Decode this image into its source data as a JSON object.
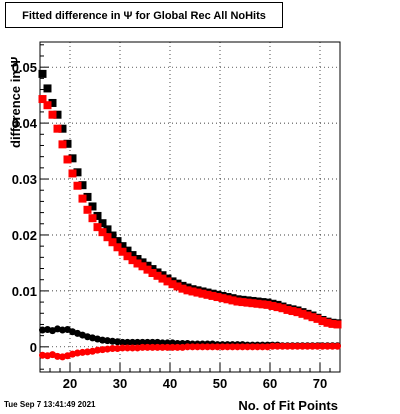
{
  "title": "Fitted difference in  Ψ  for Global Rec All NoHits",
  "footer": "Tue Sep  7 13:41:49 2021",
  "chart_data": {
    "type": "scatter",
    "title": "Fitted difference in  Ψ  for Global Rec All NoHits",
    "xlabel": "No. of Fit Points",
    "ylabel": "difference in Ψ",
    "xlim": [
      14,
      74
    ],
    "ylim": [
      -0.0045,
      0.0545
    ],
    "grid": true,
    "xticks": [
      20,
      30,
      40,
      50,
      60,
      70
    ],
    "yticks": [
      0,
      0.01,
      0.02,
      0.03,
      0.04,
      0.05
    ],
    "ytick_labels": [
      "0",
      "0.01",
      "0.02",
      "0.03",
      "0.04",
      "0.05"
    ],
    "series": [
      {
        "color": "#000000",
        "marker": "square",
        "x": [
          14.5,
          15.5,
          16.5,
          17.5,
          18.5,
          19.5,
          20.5,
          21.5,
          22.5,
          23.5,
          24.5,
          25.5,
          26.5,
          27.5,
          28.5,
          29.5,
          30.5,
          31.5,
          32.5,
          33.5,
          34.5,
          35.5,
          36.5,
          37.5,
          38.5,
          39.5,
          40.5,
          41.5,
          42.5,
          43.5,
          44.5,
          45.5,
          46.5,
          47.5,
          48.5,
          49.5,
          50.5,
          51.5,
          52.5,
          53.5,
          54.5,
          55.5,
          56.5,
          57.5,
          58.5,
          59.5,
          60.5,
          61.5,
          62.5,
          63.5,
          64.5,
          65.5,
          66.5,
          67.5,
          68.5,
          69.5,
          70.5,
          71.5,
          72.5,
          73.5
        ],
        "y": [
          0.0488,
          0.0462,
          0.0436,
          0.0415,
          0.039,
          0.0363,
          0.0337,
          0.0312,
          0.0289,
          0.0268,
          0.0251,
          0.0234,
          0.0221,
          0.021,
          0.0199,
          0.0189,
          0.018,
          0.0172,
          0.0164,
          0.0157,
          0.0151,
          0.0145,
          0.0139,
          0.0133,
          0.0128,
          0.0122,
          0.0117,
          0.0113,
          0.0109,
          0.0106,
          0.0103,
          0.0101,
          0.0099,
          0.0097,
          0.0095,
          0.0093,
          0.0091,
          0.0089,
          0.0087,
          0.0085,
          0.0084,
          0.0083,
          0.0082,
          0.0081,
          0.008,
          0.0079,
          0.0077,
          0.0075,
          0.0072,
          0.0069,
          0.0067,
          0.0065,
          0.0062,
          0.0059,
          0.0056,
          0.0052,
          0.0048,
          0.0045,
          0.0043,
          0.0042
        ]
      },
      {
        "color": "#ff0000",
        "marker": "square",
        "x": [
          14.5,
          15.5,
          16.5,
          17.5,
          18.5,
          19.5,
          20.5,
          21.5,
          22.5,
          23.5,
          24.5,
          25.5,
          26.5,
          27.5,
          28.5,
          29.5,
          30.5,
          31.5,
          32.5,
          33.5,
          34.5,
          35.5,
          36.5,
          37.5,
          38.5,
          39.5,
          40.5,
          41.5,
          42.5,
          43.5,
          44.5,
          45.5,
          46.5,
          47.5,
          48.5,
          49.5,
          50.5,
          51.5,
          52.5,
          53.5,
          54.5,
          55.5,
          56.5,
          57.5,
          58.5,
          59.5,
          60.5,
          61.5,
          62.5,
          63.5,
          64.5,
          65.5,
          66.5,
          67.5,
          68.5,
          69.5,
          70.5,
          71.5,
          72.5,
          73.5
        ],
        "y": [
          0.0443,
          0.0432,
          0.0415,
          0.039,
          0.0362,
          0.0335,
          0.031,
          0.0288,
          0.0265,
          0.0245,
          0.023,
          0.0214,
          0.0205,
          0.0196,
          0.0187,
          0.0178,
          0.017,
          0.0162,
          0.0155,
          0.0149,
          0.0144,
          0.0138,
          0.0132,
          0.0127,
          0.0122,
          0.0117,
          0.0112,
          0.0108,
          0.0104,
          0.0101,
          0.0099,
          0.0097,
          0.0095,
          0.0093,
          0.0091,
          0.0089,
          0.0087,
          0.0085,
          0.0083,
          0.0081,
          0.008,
          0.0079,
          0.0078,
          0.0077,
          0.0076,
          0.0075,
          0.0073,
          0.0071,
          0.0069,
          0.0066,
          0.0064,
          0.0062,
          0.0059,
          0.0056,
          0.0053,
          0.005,
          0.0046,
          0.0043,
          0.0041,
          0.004
        ]
      },
      {
        "color": "#000000",
        "marker": "circle",
        "x": [
          14.5,
          15.5,
          16.5,
          17.5,
          18.5,
          19.5,
          20.5,
          21.5,
          22.5,
          23.5,
          24.5,
          25.5,
          26.5,
          27.5,
          28.5,
          29.5,
          30.5,
          31.5,
          32.5,
          33.5,
          34.5,
          35.5,
          36.5,
          37.5,
          38.5,
          39.5,
          40.5,
          41.5,
          42.5,
          43.5,
          44.5,
          45.5,
          46.5,
          47.5,
          48.5,
          49.5,
          50.5,
          51.5,
          52.5,
          53.5,
          54.5,
          55.5,
          56.5,
          57.5,
          58.5,
          59.5,
          60.5,
          61.5,
          62.5,
          63.5,
          64.5,
          65.5,
          66.5,
          67.5,
          68.5,
          69.5,
          70.5,
          71.5,
          72.5,
          73.5
        ],
        "y": [
          0.003,
          0.0031,
          0.0029,
          0.0032,
          0.003,
          0.0031,
          0.0027,
          0.0024,
          0.0021,
          0.0018,
          0.0016,
          0.0014,
          0.0012,
          0.0011,
          0.001,
          0.0009,
          0.0008,
          0.0008,
          0.0008,
          0.0008,
          0.0008,
          0.0008,
          0.0008,
          0.0008,
          0.0007,
          0.0007,
          0.0007,
          0.0006,
          0.0006,
          0.0006,
          0.0005,
          0.0005,
          0.0005,
          0.0005,
          0.0005,
          0.0004,
          0.0004,
          0.0004,
          0.0004,
          0.0004,
          0.0004,
          0.0003,
          0.0003,
          0.0003,
          0.0003,
          0.0003,
          0.0003,
          0.0003,
          0.0002,
          0.0002,
          0.0002,
          0.0002,
          0.0002,
          0.0002,
          0.0002,
          0.0002,
          0.0002,
          0.0002,
          0.0002,
          0.0002
        ]
      },
      {
        "color": "#ff0000",
        "marker": "circle",
        "x": [
          14.5,
          15.5,
          16.5,
          17.5,
          18.5,
          19.5,
          20.5,
          21.5,
          22.5,
          23.5,
          24.5,
          25.5,
          26.5,
          27.5,
          28.5,
          29.5,
          30.5,
          31.5,
          32.5,
          33.5,
          34.5,
          35.5,
          36.5,
          37.5,
          38.5,
          39.5,
          40.5,
          41.5,
          42.5,
          43.5,
          44.5,
          45.5,
          46.5,
          47.5,
          48.5,
          49.5,
          50.5,
          51.5,
          52.5,
          53.5,
          54.5,
          55.5,
          56.5,
          57.5,
          58.5,
          59.5,
          60.5,
          61.5,
          62.5,
          63.5,
          64.5,
          65.5,
          66.5,
          67.5,
          68.5,
          69.5,
          70.5,
          71.5,
          72.5,
          73.5
        ],
        "y": [
          -0.0015,
          -0.0016,
          -0.0014,
          -0.0017,
          -0.0018,
          -0.0016,
          -0.0013,
          -0.0011,
          -0.001,
          -0.0009,
          -0.0008,
          -0.0006,
          -0.0005,
          -0.0004,
          -0.0003,
          -0.0003,
          -0.0002,
          -0.0002,
          -0.0002,
          -0.0002,
          -0.0001,
          -0.0001,
          -0.0001,
          -0.0001,
          -0.0001,
          -0.0001,
          -0.0001,
          -0.0001,
          -0.0001,
          0.0,
          0.0,
          0.0,
          0.0,
          0.0,
          0.0,
          0.0,
          0.0,
          0.0,
          0.0,
          0.0,
          0.0,
          0.0,
          0.0,
          0.0,
          0.0,
          0.0,
          0.0001,
          0.0001,
          0.0001,
          0.0001,
          0.0001,
          0.0001,
          0.0001,
          0.0001,
          0.0001,
          0.0001,
          0.0001,
          0.0001,
          0.0001,
          0.0001
        ]
      }
    ]
  }
}
